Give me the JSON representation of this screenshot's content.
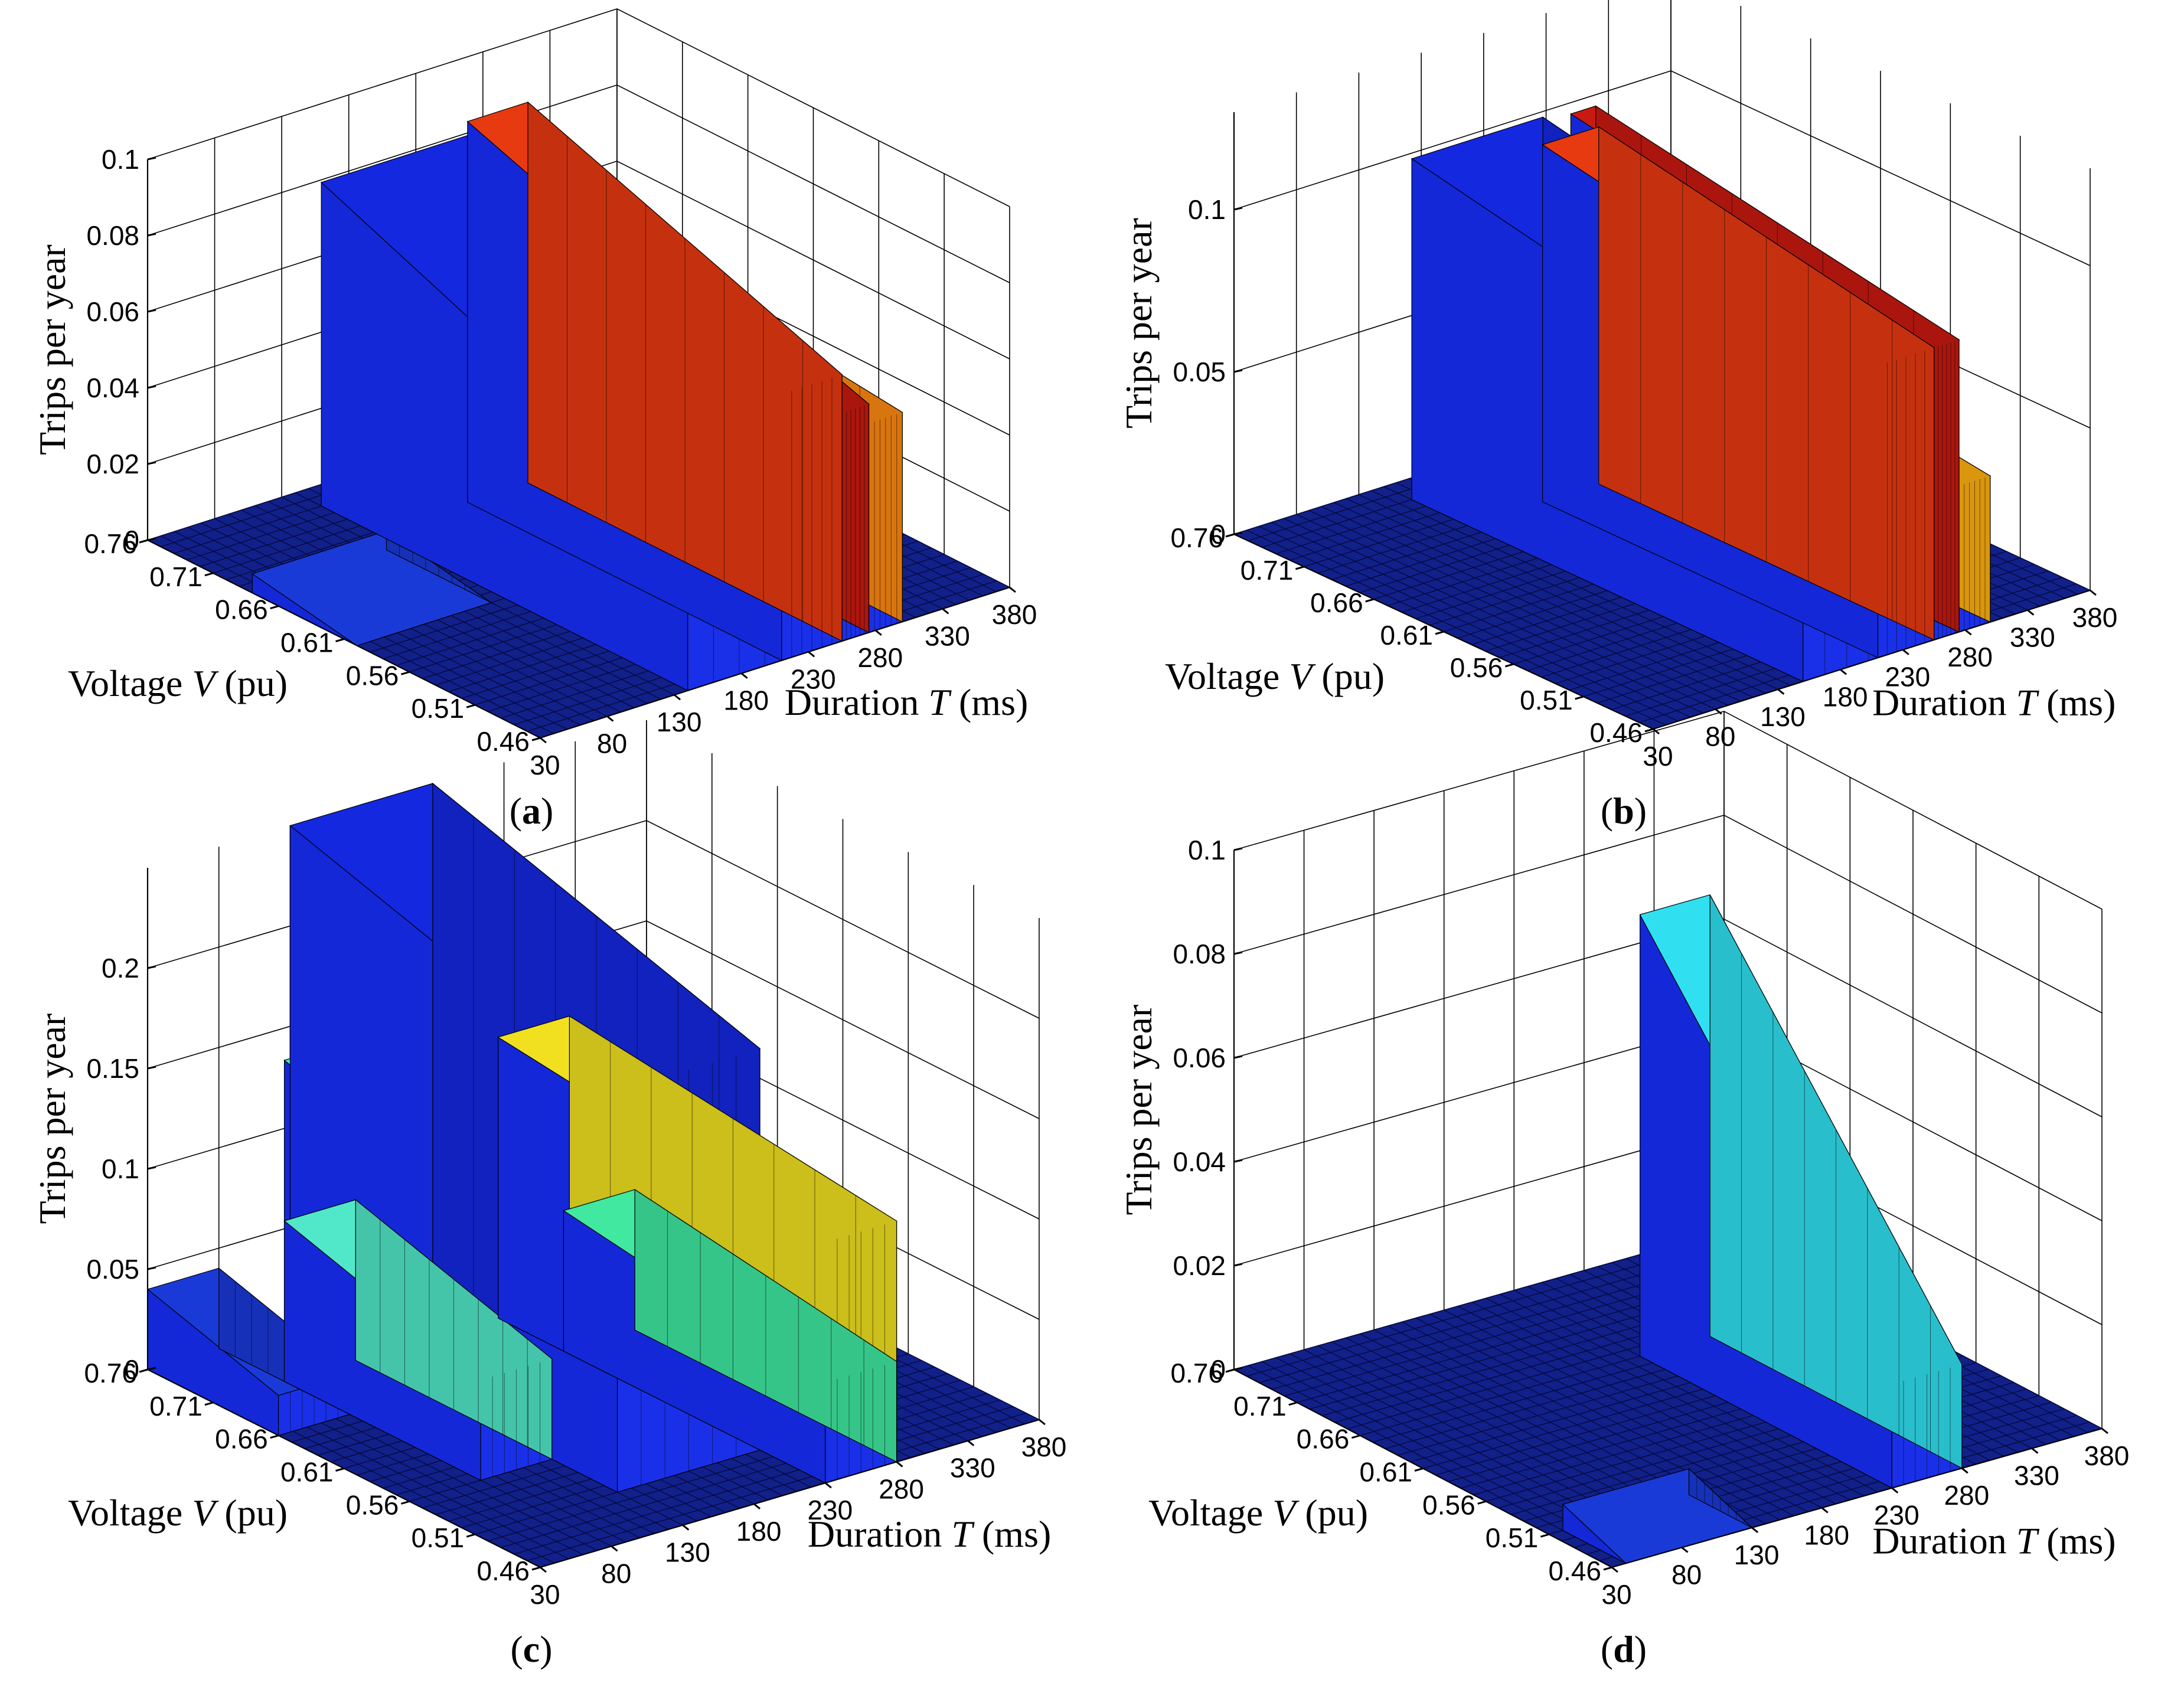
{
  "figure": {
    "panels": [
      {
        "id": "a",
        "label": "a",
        "zmax": 0.1,
        "zticks": [
          "0",
          "0.02",
          "0.04",
          "0.06",
          "0.08",
          "0.1"
        ]
      },
      {
        "id": "b",
        "label": "b",
        "zmax": 0.13,
        "zticks": [
          "0",
          "0.05",
          "0.1"
        ]
      },
      {
        "id": "c",
        "label": "c",
        "zmax": 0.25,
        "zticks": [
          "0",
          "0.05",
          "0.1",
          "0.15",
          "0.2"
        ]
      },
      {
        "id": "d",
        "label": "d",
        "zmax": 0.1,
        "zticks": [
          "0",
          "0.02",
          "0.04",
          "0.06",
          "0.08",
          "0.1"
        ]
      }
    ]
  },
  "axes": {
    "z_title": "Trips per year",
    "v_title_prefix": "Voltage ",
    "v_title_var": "V",
    "v_title_suffix": " (pu)",
    "t_title_prefix": "Duration ",
    "t_title_var": "T",
    "t_title_suffix": " (ms)"
  },
  "chart_data": [
    {
      "type": "surface3d",
      "panel": "a",
      "title": "(a)",
      "xlabel": "Duration T (ms)",
      "ylabel": "Voltage V (pu)",
      "zlabel": "Trips per year",
      "x_ticks": [
        30,
        80,
        130,
        180,
        230,
        280,
        330,
        380
      ],
      "y_ticks": [
        0.76,
        0.71,
        0.66,
        0.61,
        0.56,
        0.51,
        0.46
      ],
      "z_ticks": [
        0,
        0.02,
        0.04,
        0.06,
        0.08,
        0.1
      ],
      "xlim": [
        30,
        380
      ],
      "ylim": [
        0.46,
        0.76
      ],
      "zlim": [
        0,
        0.1
      ],
      "regions": [
        {
          "T": [
            140,
            255
          ],
          "V": [
            0.46,
            0.74
          ],
          "z_low": 0.045,
          "z_high": 0.085,
          "color": "#1428e0"
        },
        {
          "T": [
            210,
            255
          ],
          "V": [
            0.46,
            0.7
          ],
          "z_low": 0.07,
          "z_high": 0.1,
          "color": "#e83a10"
        },
        {
          "T": [
            255,
            275
          ],
          "V": [
            0.46,
            0.72
          ],
          "z_low": 0.06,
          "z_high": 0.09,
          "color": "#c81a10"
        },
        {
          "T": [
            275,
            300
          ],
          "V": [
            0.46,
            0.72
          ],
          "z_low": 0.055,
          "z_high": 0.065,
          "color": "#ff8a10"
        },
        {
          "T": [
            30,
            130
          ],
          "V": [
            0.6,
            0.68
          ],
          "z_low": 0.0,
          "z_high": 0.005,
          "color": "#1a3ad8"
        }
      ]
    },
    {
      "type": "surface3d",
      "panel": "b",
      "title": "(b)",
      "xlabel": "Duration T (ms)",
      "ylabel": "Voltage V (pu)",
      "zlabel": "Trips per year",
      "x_ticks": [
        30,
        80,
        130,
        180,
        230,
        280,
        330,
        380
      ],
      "y_ticks": [
        0.76,
        0.71,
        0.66,
        0.61,
        0.56,
        0.51,
        0.46
      ],
      "z_ticks": [
        0,
        0.05,
        0.1
      ],
      "xlim": [
        30,
        380
      ],
      "ylim": [
        0.46,
        0.76
      ],
      "zlim": [
        0,
        0.13
      ],
      "regions": [
        {
          "T": [
            150,
            255
          ],
          "V": [
            0.46,
            0.74
          ],
          "z_low": 0.08,
          "z_high": 0.105,
          "color": "#1428e0"
        },
        {
          "T": [
            210,
            255
          ],
          "V": [
            0.46,
            0.7
          ],
          "z_low": 0.09,
          "z_high": 0.11,
          "color": "#e83a10"
        },
        {
          "T": [
            255,
            275
          ],
          "V": [
            0.46,
            0.72
          ],
          "z_low": 0.09,
          "z_high": 0.11,
          "color": "#c81a10"
        },
        {
          "T": [
            275,
            300
          ],
          "V": [
            0.46,
            0.72
          ],
          "z_low": 0.045,
          "z_high": 0.06,
          "color": "#ffb010"
        }
      ]
    },
    {
      "type": "surface3d",
      "panel": "c",
      "title": "(c)",
      "xlabel": "Duration T (ms)",
      "ylabel": "Voltage V (pu)",
      "zlabel": "Trips per year",
      "x_ticks": [
        30,
        80,
        130,
        180,
        230,
        280,
        330,
        380
      ],
      "y_ticks": [
        0.76,
        0.71,
        0.66,
        0.61,
        0.56,
        0.51,
        0.46
      ],
      "z_ticks": [
        0,
        0.05,
        0.1,
        0.15,
        0.2
      ],
      "xlim": [
        30,
        380
      ],
      "ylim": [
        0.46,
        0.76
      ],
      "zlim": [
        0,
        0.25
      ],
      "regions": [
        {
          "T": [
            30,
            80
          ],
          "V": [
            0.66,
            0.76
          ],
          "z_low": 0.02,
          "z_high": 0.04,
          "color": "#1a3ad8"
        },
        {
          "T": [
            80,
            130
          ],
          "V": [
            0.56,
            0.71
          ],
          "z_low": 0.05,
          "z_high": 0.08,
          "color": "#50e8c8"
        },
        {
          "T": [
            80,
            130
          ],
          "V": [
            0.61,
            0.71
          ],
          "z_low": 0.14,
          "z_high": 0.16,
          "color": "#40f0b0"
        },
        {
          "T": [
            130,
            230
          ],
          "V": [
            0.51,
            0.76
          ],
          "z_low": 0.2,
          "z_high": 0.25,
          "color": "#1428e0"
        },
        {
          "T": [
            180,
            230
          ],
          "V": [
            0.61,
            0.76
          ],
          "z_low": 0.22,
          "z_high": 0.25,
          "color": "#b01810"
        },
        {
          "T": [
            230,
            280
          ],
          "V": [
            0.46,
            0.71
          ],
          "z_low": 0.12,
          "z_high": 0.14,
          "color": "#f0e020"
        },
        {
          "T": [
            230,
            280
          ],
          "V": [
            0.46,
            0.66
          ],
          "z_low": 0.05,
          "z_high": 0.07,
          "color": "#40e8a0"
        }
      ]
    },
    {
      "type": "surface3d",
      "panel": "d",
      "title": "(d)",
      "xlabel": "Duration T (ms)",
      "ylabel": "Voltage V (pu)",
      "zlabel": "Trips per year",
      "x_ticks": [
        30,
        80,
        130,
        180,
        230,
        280,
        330,
        380
      ],
      "y_ticks": [
        0.76,
        0.71,
        0.66,
        0.61,
        0.56,
        0.51,
        0.46
      ],
      "z_ticks": [
        0,
        0.02,
        0.04,
        0.06,
        0.08,
        0.1
      ],
      "xlim": [
        30,
        380
      ],
      "ylim": [
        0.46,
        0.76
      ],
      "zlim": [
        0,
        0.1
      ],
      "regions": [
        {
          "T": [
            230,
            280
          ],
          "V": [
            0.46,
            0.66
          ],
          "z_low": 0.02,
          "z_high": 0.085,
          "color": "#30e0f0"
        },
        {
          "T": [
            40,
            130
          ],
          "V": [
            0.46,
            0.51
          ],
          "z_low": 0.0,
          "z_high": 0.005,
          "color": "#1a3ad8"
        }
      ]
    }
  ]
}
